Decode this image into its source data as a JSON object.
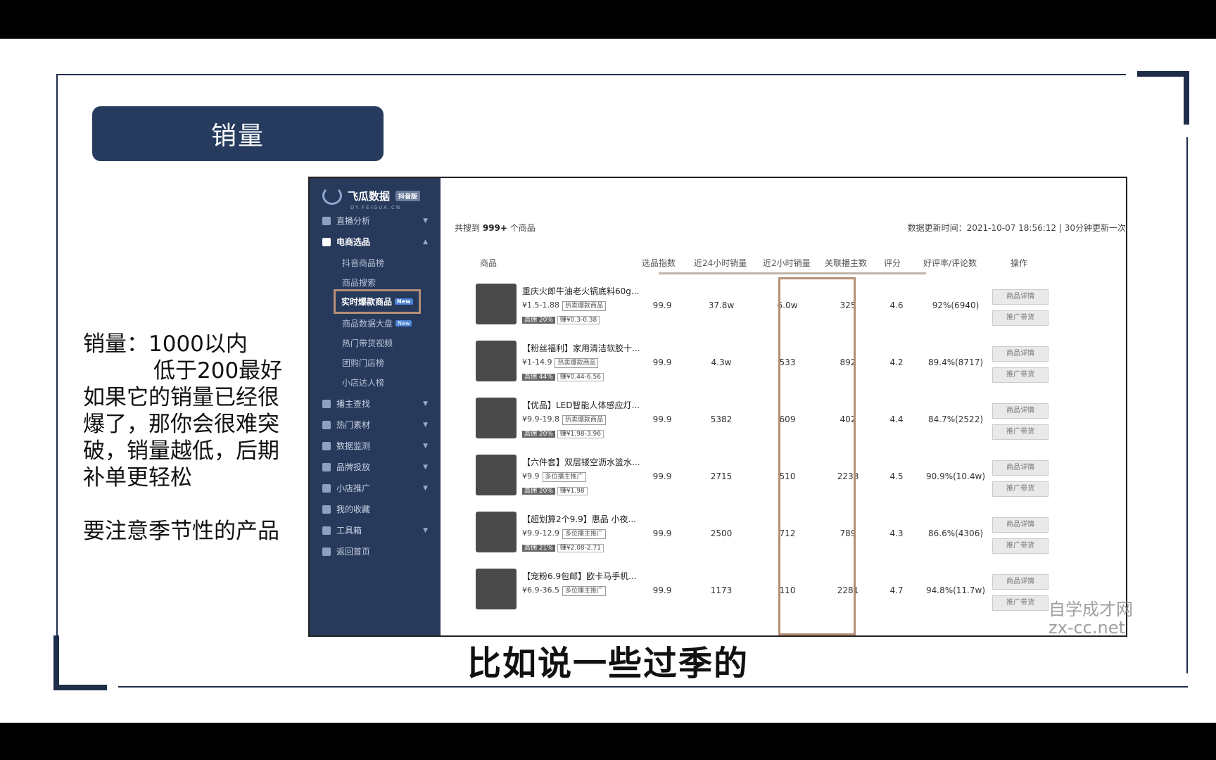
{
  "slide": {
    "title": "销量",
    "notes": {
      "line1": "销量：1000以内",
      "line2": "低于200最好",
      "line3": "如果它的销量已经很",
      "line4": "爆了，那你会很难突",
      "line5": "破，销量越低，后期",
      "line6": "补单更轻松",
      "line7": "要注意季节性的产品"
    },
    "subtitle": "比如说一些过季的",
    "watermark_line1": "自学成才网",
    "watermark_line2": "zx-cc.net"
  },
  "app": {
    "logo_text": "飞瓜数据",
    "logo_badge": "抖音版",
    "logo_sub": "DY.FEIGUA.CN",
    "nav": [
      {
        "label": "直播分析"
      },
      {
        "label": "电商选品"
      },
      {
        "label": "播主查找"
      },
      {
        "label": "热门素材"
      },
      {
        "label": "数据监测"
      },
      {
        "label": "品牌投放"
      },
      {
        "label": "小店推广"
      },
      {
        "label": "我的收藏"
      },
      {
        "label": "工具箱"
      },
      {
        "label": "返回首页"
      }
    ],
    "subnav": [
      {
        "label": "抖音商品榜"
      },
      {
        "label": "商品搜索"
      },
      {
        "label": "实时爆款商品",
        "badge": "New"
      },
      {
        "label": "商品数据大盘",
        "badge": "New"
      },
      {
        "label": "热门带货视频"
      },
      {
        "label": "团购门店榜"
      },
      {
        "label": "小店达人榜"
      }
    ],
    "count_prefix": "共搜到",
    "count_value": "999+",
    "count_suffix": "个商品",
    "update_text": "数据更新时间：2021-10-07 18:56:12 | 30分钟更新一次",
    "headers": [
      "商品",
      "选品指数",
      "近24小时销量",
      "近2小时销量",
      "关联播主数",
      "评分",
      "好评率/评论数",
      "操作"
    ],
    "rows": [
      {
        "name": "重庆火郎牛油老火锅底料60g...",
        "price": "¥1.5-1.88",
        "tag": "热卖爆款商品",
        "comm": "高佣 20%",
        "earn": "赚¥0.3-0.38",
        "index": "99.9",
        "sales24": "37.8w",
        "sales2": "6.0w",
        "streamers": "325",
        "score": "4.6",
        "rate": "92%(6940)"
      },
      {
        "name": "【粉丝福利】家用清洁软胶十...",
        "price": "¥1-14.9",
        "tag": "热卖爆款商品",
        "comm": "高佣 44%",
        "earn": "赚¥0.44-6.56",
        "index": "99.9",
        "sales24": "4.3w",
        "sales2": "533",
        "streamers": "892",
        "score": "4.2",
        "rate": "89.4%(8717)"
      },
      {
        "name": "【优品】LED智能人体感应灯...",
        "price": "¥9.9-19.8",
        "tag": "热卖爆款商品",
        "comm": "高佣 20%",
        "earn": "赚¥1.98-3.96",
        "index": "99.9",
        "sales24": "5382",
        "sales2": "609",
        "streamers": "402",
        "score": "4.4",
        "rate": "84.7%(2522)"
      },
      {
        "name": "【六件套】双层镂空沥水篮水...",
        "price": "¥9.9",
        "tag": "多位播主推广",
        "comm": "高佣 20%",
        "earn": "赚¥1.98",
        "index": "99.9",
        "sales24": "2715",
        "sales2": "510",
        "streamers": "2238",
        "score": "4.5",
        "rate": "90.9%(10.4w)"
      },
      {
        "name": "【超划算2个9.9】惠品 小夜...",
        "price": "¥9.9-12.9",
        "tag": "多位播主推广",
        "comm": "高佣 21%",
        "earn": "赚¥2.08-2.71",
        "index": "99.9",
        "sales24": "2500",
        "sales2": "712",
        "streamers": "789",
        "score": "4.3",
        "rate": "86.6%(4306)"
      },
      {
        "name": "【宠粉6.9包邮】欧卡马手机...",
        "price": "¥6.9-36.5",
        "tag": "多位播主推广",
        "comm": "",
        "earn": "",
        "index": "99.9",
        "sales24": "1173",
        "sales2": "110",
        "streamers": "2281",
        "score": "4.7",
        "rate": "94.8%(11.7w)"
      }
    ],
    "op_detail": "商品详情",
    "op_promote": "推广带货"
  }
}
